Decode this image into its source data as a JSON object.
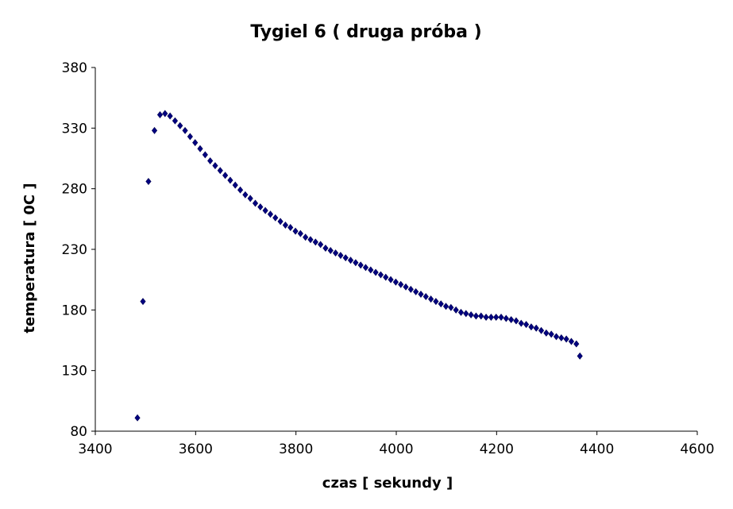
{
  "chart_data": {
    "type": "scatter",
    "title": "Tygiel 6 ( druga próba )",
    "xlabel": "czas [ sekundy ]",
    "ylabel": "temperatura [ 0C ]",
    "xlim": [
      3400,
      4600
    ],
    "ylim": [
      80,
      380
    ],
    "xticks": [
      3400,
      3600,
      3800,
      4000,
      4200,
      4400,
      4600
    ],
    "yticks": [
      80,
      130,
      180,
      230,
      280,
      330,
      380
    ],
    "marker": "diamond",
    "marker_color": "#000080",
    "grid": false,
    "legend": "none",
    "series": [
      {
        "points": [
          [
            3484,
            91
          ],
          [
            3495,
            187
          ],
          [
            3506,
            286
          ],
          [
            3518,
            328
          ],
          [
            3529,
            341
          ],
          [
            3539,
            342
          ],
          [
            3549,
            340
          ],
          [
            3559,
            336
          ],
          [
            3569,
            332
          ],
          [
            3579,
            328
          ],
          [
            3589,
            323
          ],
          [
            3599,
            318
          ],
          [
            3609,
            313
          ],
          [
            3619,
            308
          ],
          [
            3629,
            303
          ],
          [
            3639,
            299
          ],
          [
            3649,
            295
          ],
          [
            3659,
            291
          ],
          [
            3669,
            287
          ],
          [
            3679,
            283
          ],
          [
            3689,
            279
          ],
          [
            3699,
            275
          ],
          [
            3709,
            272
          ],
          [
            3719,
            268
          ],
          [
            3729,
            265
          ],
          [
            3739,
            262
          ],
          [
            3749,
            259
          ],
          [
            3759,
            256
          ],
          [
            3769,
            253
          ],
          [
            3779,
            250
          ],
          [
            3789,
            248
          ],
          [
            3799,
            245
          ],
          [
            3809,
            243
          ],
          [
            3819,
            240
          ],
          [
            3829,
            238
          ],
          [
            3839,
            236
          ],
          [
            3849,
            234
          ],
          [
            3859,
            231
          ],
          [
            3869,
            229
          ],
          [
            3879,
            227
          ],
          [
            3889,
            225
          ],
          [
            3899,
            223
          ],
          [
            3909,
            221
          ],
          [
            3919,
            219
          ],
          [
            3929,
            217
          ],
          [
            3939,
            215
          ],
          [
            3949,
            213
          ],
          [
            3959,
            211
          ],
          [
            3969,
            209
          ],
          [
            3979,
            207
          ],
          [
            3989,
            205
          ],
          [
            3999,
            203
          ],
          [
            4009,
            201
          ],
          [
            4019,
            199
          ],
          [
            4029,
            197
          ],
          [
            4039,
            195
          ],
          [
            4049,
            193
          ],
          [
            4059,
            191
          ],
          [
            4069,
            189
          ],
          [
            4079,
            187
          ],
          [
            4089,
            185
          ],
          [
            4099,
            183
          ],
          [
            4109,
            182
          ],
          [
            4119,
            180
          ],
          [
            4129,
            178
          ],
          [
            4139,
            177
          ],
          [
            4149,
            176
          ],
          [
            4159,
            175
          ],
          [
            4169,
            175
          ],
          [
            4179,
            174
          ],
          [
            4189,
            174
          ],
          [
            4199,
            174
          ],
          [
            4209,
            174
          ],
          [
            4219,
            173
          ],
          [
            4229,
            172
          ],
          [
            4239,
            171
          ],
          [
            4249,
            169
          ],
          [
            4259,
            168
          ],
          [
            4269,
            166
          ],
          [
            4279,
            165
          ],
          [
            4289,
            163
          ],
          [
            4299,
            161
          ],
          [
            4309,
            160
          ],
          [
            4319,
            158
          ],
          [
            4329,
            157
          ],
          [
            4339,
            156
          ],
          [
            4349,
            154
          ],
          [
            4359,
            152
          ],
          [
            4366,
            142
          ]
        ]
      }
    ]
  }
}
